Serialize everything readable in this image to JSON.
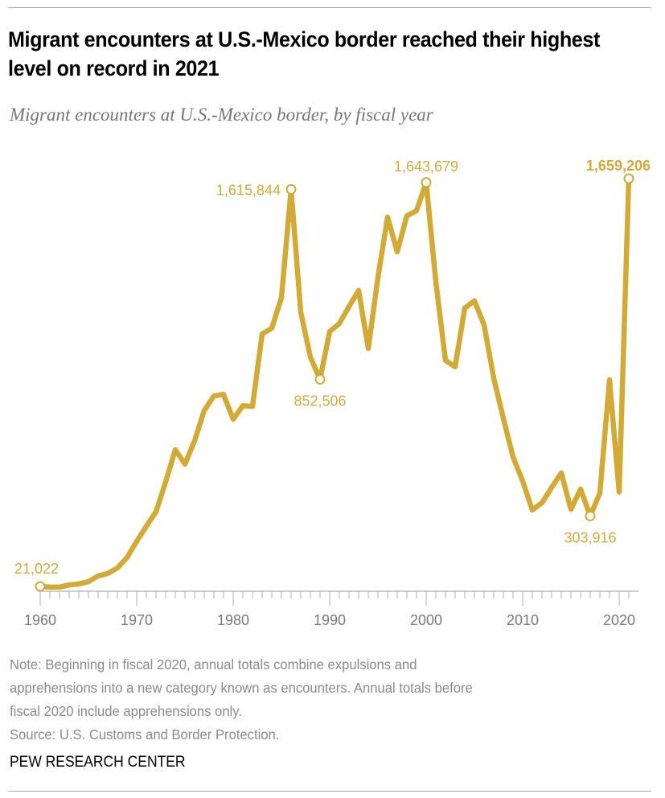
{
  "header": {
    "title": "Migrant encounters at U.S.-Mexico border reached their highest level on record in 2021",
    "subtitle": "Migrant encounters at U.S.-Mexico border, by fiscal year"
  },
  "footer": {
    "note_lines": [
      "Note: Beginning in fiscal 2020, annual totals combine expulsions and",
      "apprehensions into a new category known as encounters. Annual totals before",
      "fiscal 2020 include apprehensions only."
    ],
    "source": "Source: U.S. Customs and Border Protection.",
    "brand": "PEW RESEARCH CENTER"
  },
  "colors": {
    "line": "#d4aa36",
    "axis": "#b0b0b0",
    "tick_text": "#7a7a7a"
  },
  "chart_data": {
    "type": "line",
    "title": "Migrant encounters at U.S.-Mexico border, by fiscal year",
    "xlabel": "",
    "ylabel": "",
    "xlim": [
      1960,
      2021
    ],
    "ylim": [
      0,
      1700000
    ],
    "grid": false,
    "legend": "none",
    "x_ticks": [
      1960,
      1970,
      1980,
      1990,
      2000,
      2010,
      2020
    ],
    "x_tick_labels": [
      "1960",
      "1970",
      "1980",
      "1990",
      "2000",
      "2010",
      "2020"
    ],
    "series": [
      {
        "name": "Migrant encounters",
        "x": [
          1960,
          1961,
          1962,
          1963,
          1964,
          1965,
          1966,
          1967,
          1968,
          1969,
          1970,
          1971,
          1972,
          1973,
          1974,
          1975,
          1976,
          1977,
          1978,
          1979,
          1980,
          1981,
          1982,
          1983,
          1984,
          1985,
          1986,
          1987,
          1988,
          1989,
          1990,
          1991,
          1992,
          1993,
          1994,
          1995,
          1996,
          1997,
          1998,
          1999,
          2000,
          2001,
          2002,
          2003,
          2004,
          2005,
          2006,
          2007,
          2008,
          2009,
          2010,
          2011,
          2012,
          2013,
          2014,
          2015,
          2016,
          2017,
          2018,
          2019,
          2020,
          2021
        ],
        "values": [
          21022,
          18000,
          18000,
          27000,
          31000,
          40000,
          63000,
          73000,
          95000,
          137000,
          202000,
          263000,
          321000,
          441000,
          570000,
          512000,
          606000,
          728000,
          786000,
          792000,
          692000,
          747000,
          744000,
          1035000,
          1058000,
          1181000,
          1615844,
          1123000,
          942000,
          852506,
          1045000,
          1077000,
          1145000,
          1210000,
          977000,
          1262000,
          1504000,
          1365000,
          1510000,
          1530000,
          1643679,
          1245000,
          929000,
          903000,
          1139000,
          1168000,
          1071000,
          858000,
          696000,
          541000,
          444000,
          328000,
          357000,
          418000,
          477000,
          331000,
          412000,
          303916,
          396000,
          851000,
          400000,
          1659206
        ]
      }
    ],
    "annotations": [
      {
        "year": 1960,
        "value": 21022,
        "label": "21,022",
        "position": "above",
        "bold": false
      },
      {
        "year": 1986,
        "value": 1615844,
        "label": "1,615,844",
        "position": "left",
        "bold": false
      },
      {
        "year": 1989,
        "value": 852506,
        "label": "852,506",
        "position": "below",
        "bold": false
      },
      {
        "year": 2000,
        "value": 1643679,
        "label": "1,643,679",
        "position": "above",
        "bold": false
      },
      {
        "year": 2017,
        "value": 303916,
        "label": "303,916",
        "position": "below",
        "bold": false
      },
      {
        "year": 2021,
        "value": 1659206,
        "label": "1,659,206",
        "position": "above",
        "bold": true
      }
    ]
  }
}
